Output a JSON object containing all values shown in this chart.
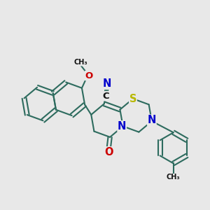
{
  "bg_color": "#e8e8e8",
  "bond_color": "#2d6b5e",
  "bond_width": 1.5,
  "atom_colors": {
    "C": "#000000",
    "N": "#0000cc",
    "O": "#cc0000",
    "S": "#b8b800"
  },
  "font_size": 8.5
}
